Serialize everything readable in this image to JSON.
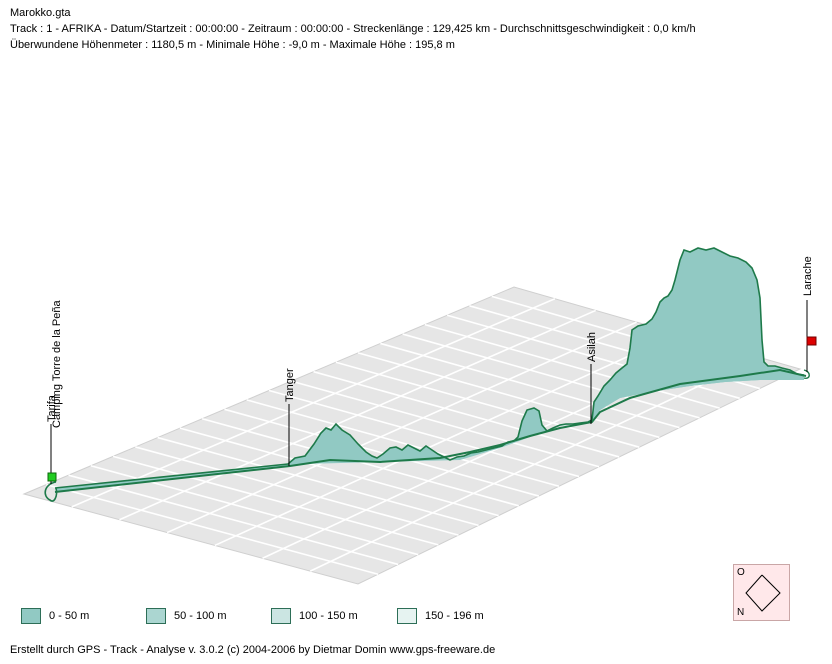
{
  "header": {
    "file": "Marokko.gta",
    "line1": "Track : 1 - AFRIKA - Datum/Startzeit : 00:00:00 - Zeitraum : 00:00:00 - Streckenlänge : 129,425 km - Durchschnittsgeschwindigkeit : 0,0 km/h",
    "line2": "Überwundene Höhenmeter : 1180,5 m  -  Minimale Höhe : -9,0 m  -  Maximale Höhe : 195,8 m"
  },
  "waypoints": {
    "tarifa": "Tarifa",
    "camping": "Camping Torre de la Peña",
    "tanger": "Tanger",
    "asilah": "Asilah",
    "larache": "Larache"
  },
  "legend": [
    {
      "label": "0 - 50 m",
      "color": "#91c9c3"
    },
    {
      "label": "50 - 100 m",
      "color": "#abd6d1"
    },
    {
      "label": "100 - 150 m",
      "color": "#cbe5e2"
    },
    {
      "label": "150 - 196 m",
      "color": "#e6f3f1"
    }
  ],
  "compass": {
    "north": "N",
    "east": "O"
  },
  "colors": {
    "track": "#1e7a4a",
    "start_marker": "#22cc22",
    "end_marker": "#dd0000",
    "grid_floor": "#e3e3e3"
  },
  "footer": "Erstellt durch  GPS - Track - Analyse   v. 3.0.2   (c) 2004-2006 by Dietmar Domin  www.gps-freeware.de"
}
